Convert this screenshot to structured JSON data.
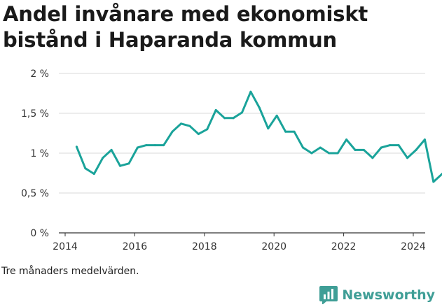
{
  "title": "Andel invånare med ekonomiskt bistånd i Haparanda kommun",
  "footnote": "Tre månaders medelvärden.",
  "brand": {
    "name": "Newsworthy",
    "logo_icon": "bar-chart-icon",
    "color": "#3f9e96"
  },
  "chart_data": {
    "type": "line",
    "title": "Andel invånare med ekonomiskt bistånd i Haparanda kommun",
    "xlabel": "",
    "ylabel": "",
    "ylim": [
      0,
      2
    ],
    "xlim": [
      2014,
      2025.4
    ],
    "yticks": [
      {
        "v": 0,
        "label": "0 %"
      },
      {
        "v": 0.5,
        "label": "0,5 %"
      },
      {
        "v": 1,
        "label": "1 %"
      },
      {
        "v": 1.5,
        "label": "1,5 %"
      },
      {
        "v": 2,
        "label": "2 %"
      }
    ],
    "xticks": [
      {
        "v": 2014,
        "label": "2014"
      },
      {
        "v": 2016,
        "label": "2016"
      },
      {
        "v": 2018,
        "label": "2018"
      },
      {
        "v": 2020,
        "label": "2020"
      },
      {
        "v": 2022,
        "label": "2022"
      },
      {
        "v": 2024,
        "label": "2024"
      }
    ],
    "grid": "horizontal",
    "color": "#1aa39a",
    "x": [
      2014.33,
      2014.58,
      2014.83,
      2015.08,
      2015.33,
      2015.58,
      2015.83,
      2016.08,
      2016.33,
      2016.58,
      2016.83,
      2017.08,
      2017.33,
      2017.58,
      2017.83,
      2018.08,
      2018.33,
      2018.58,
      2018.83,
      2019.08,
      2019.33,
      2019.58,
      2019.83,
      2020.08,
      2020.33,
      2020.58,
      2020.83,
      2021.08,
      2021.33,
      2021.58,
      2021.83,
      2022.08,
      2022.33,
      2022.58,
      2022.83,
      2023.08,
      2023.33,
      2023.58,
      2023.83,
      2024.08,
      2024.33,
      2024.58,
      2024.83
    ],
    "y": [
      1.08,
      0.81,
      0.74,
      0.94,
      1.04,
      0.84,
      0.87,
      1.07,
      1.1,
      1.1,
      1.1,
      1.27,
      1.37,
      1.34,
      1.24,
      1.3,
      1.54,
      1.44,
      1.44,
      1.51,
      1.77,
      1.57,
      1.31,
      1.47,
      1.27,
      1.27,
      1.07,
      1.0,
      1.07,
      1.0,
      1.0,
      1.17,
      1.04,
      1.04,
      0.94,
      1.07,
      1.1,
      1.1,
      0.94,
      1.04,
      1.17,
      0.64,
      0.74
    ]
  }
}
